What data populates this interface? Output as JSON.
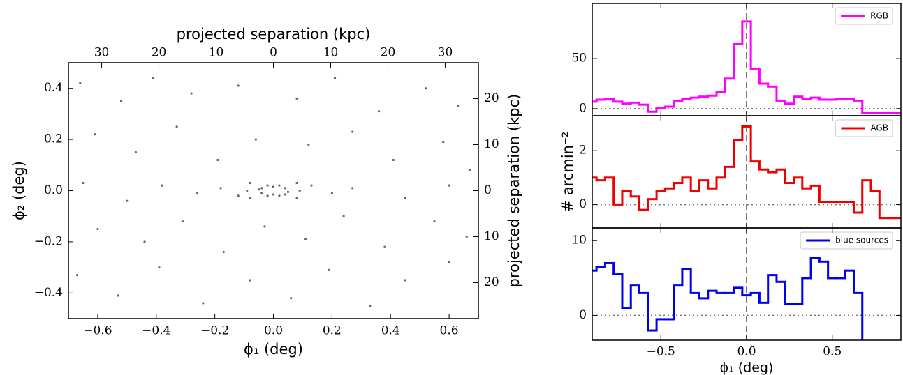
{
  "chart_data": [
    {
      "type": "scatter",
      "color": "#000000",
      "x": [
        -0.66,
        -0.52,
        -0.41,
        -0.28,
        -0.12,
        0.08,
        0.21,
        0.36,
        0.52,
        0.63,
        -0.61,
        -0.47,
        -0.33,
        -0.19,
        -0.06,
        0.12,
        0.27,
        0.41,
        0.58,
        0.67,
        -0.65,
        -0.5,
        -0.38,
        -0.26,
        -0.18,
        -0.12,
        0.13,
        0.2,
        0.27,
        0.45,
        0.6,
        -0.6,
        -0.44,
        -0.31,
        -0.17,
        -0.03,
        0.11,
        0.24,
        0.38,
        0.55,
        0.66,
        -0.67,
        -0.53,
        -0.39,
        -0.24,
        -0.08,
        0.06,
        0.19,
        0.33,
        0.45,
        0.6,
        -0.04,
        -0.02,
        0,
        0.02,
        0.04,
        0.05,
        0.04,
        0.02,
        0,
        -0.02,
        -0.04,
        -0.05,
        -0.08,
        0.08,
        -0.08,
        0.08,
        -0.09,
        0.09
      ],
      "y": [
        0.42,
        0.35,
        0.44,
        0.38,
        0.41,
        0.36,
        0.44,
        0.31,
        0.4,
        0.33,
        0.22,
        0.15,
        0.25,
        0.12,
        0.2,
        0.18,
        0.23,
        0.12,
        0.19,
        0.08,
        0.03,
        -0.04,
        0.02,
        -0.01,
        0.01,
        -0.02,
        0.02,
        -0.01,
        0.01,
        -0.03,
        0.02,
        -0.15,
        -0.2,
        -0.12,
        -0.24,
        -0.14,
        -0.19,
        -0.1,
        -0.22,
        -0.12,
        -0.18,
        -0.33,
        -0.41,
        -0.3,
        -0.44,
        -0.35,
        -0.42,
        -0.31,
        -0.45,
        -0.35,
        -0.28,
        0.01,
        0.02,
        0.015,
        0.02,
        0.01,
        -0.005,
        -0.015,
        -0.02,
        -0.015,
        -0.02,
        -0.01,
        0.005,
        0.03,
        0.03,
        -0.03,
        -0.03,
        0,
        0
      ],
      "xlim": [
        -0.7,
        0.7
      ],
      "ylim": [
        -0.5,
        0.5
      ],
      "xticks": [
        {
          "value": -0.6,
          "label": "−0.6"
        },
        {
          "value": -0.4,
          "label": "−0.4"
        },
        {
          "value": -0.2,
          "label": "−0.2"
        },
        {
          "value": 0,
          "label": "0.0"
        },
        {
          "value": 0.2,
          "label": "0.2"
        },
        {
          "value": 0.4,
          "label": "0.4"
        },
        {
          "value": 0.6,
          "label": "0.6"
        }
      ],
      "yticks": [
        {
          "value": -0.4,
          "label": "−0.4"
        },
        {
          "value": -0.2,
          "label": "−0.2"
        },
        {
          "value": 0,
          "label": "0.0"
        },
        {
          "value": 0.2,
          "label": "0.2"
        },
        {
          "value": 0.4,
          "label": "0.4"
        }
      ],
      "x2lim": [
        -35.8,
        35.8
      ],
      "x2ticks": [
        {
          "value": -30,
          "label": "30"
        },
        {
          "value": -20,
          "label": "20"
        },
        {
          "value": -10,
          "label": "10"
        },
        0,
        10,
        20,
        30
      ],
      "y2lim": [
        -27.8,
        27.8
      ],
      "y2ticks": [
        {
          "value": -20,
          "label": "20"
        },
        {
          "value": -10,
          "label": "10"
        },
        0,
        10,
        20
      ],
      "xlabel": "ϕ₁ (deg)",
      "ylabel": "ϕ₂ (deg)",
      "x2label": "projected separation (kpc)",
      "y2label": "projected separation (kpc)"
    },
    {
      "type": "histogram",
      "bins": [
        -0.925,
        -0.875,
        -0.825,
        -0.775,
        -0.725,
        -0.675,
        -0.625,
        -0.575,
        -0.525,
        -0.475,
        -0.425,
        -0.375,
        -0.325,
        -0.275,
        -0.225,
        -0.175,
        -0.125,
        -0.075,
        -0.025,
        0.025,
        0.075,
        0.125,
        0.175,
        0.225,
        0.275,
        0.325,
        0.375,
        0.425,
        0.475,
        0.525,
        0.575,
        0.625,
        0.675,
        0.725,
        0.775,
        0.825,
        0.875,
        0.925
      ],
      "series": [
        {
          "name": "RGB",
          "color": "#ff00ff",
          "values": [
            7,
            9,
            10,
            7,
            5,
            6,
            4,
            -3,
            1,
            2,
            8,
            10,
            11,
            12,
            13,
            17,
            30,
            65,
            87,
            40,
            25,
            22,
            8,
            5,
            12,
            10,
            11,
            9,
            9,
            10,
            10,
            8,
            -4,
            -4,
            -4,
            -4,
            -4
          ]
        }
      ],
      "xlim": [
        -0.9,
        0.9
      ],
      "ylim": [
        -7,
        105
      ],
      "xticks": [
        -0.5,
        0,
        0.5
      ],
      "yticks": [
        0,
        50
      ],
      "vline": 0,
      "hline": 0
    },
    {
      "type": "histogram",
      "bins": [
        -0.925,
        -0.875,
        -0.825,
        -0.775,
        -0.725,
        -0.675,
        -0.625,
        -0.575,
        -0.525,
        -0.475,
        -0.425,
        -0.375,
        -0.325,
        -0.275,
        -0.225,
        -0.175,
        -0.125,
        -0.075,
        -0.025,
        0.025,
        0.075,
        0.125,
        0.175,
        0.225,
        0.275,
        0.325,
        0.375,
        0.425,
        0.475,
        0.525,
        0.575,
        0.625,
        0.675,
        0.725,
        0.775,
        0.825,
        0.875,
        0.925
      ],
      "series": [
        {
          "name": "AGB",
          "color": "#ee0000",
          "values": [
            1.0,
            0.9,
            1.0,
            0.0,
            0.5,
            0.3,
            -0.2,
            0.2,
            0.5,
            0.6,
            0.8,
            1.0,
            0.5,
            0.9,
            0.6,
            1.0,
            1.4,
            2.4,
            2.9,
            1.6,
            1.3,
            1.2,
            1.3,
            0.8,
            1.0,
            0.6,
            0.7,
            0.1,
            0.1,
            0.1,
            0.1,
            -0.3,
            0.9,
            0.5,
            -0.5,
            -0.5,
            -0.5
          ]
        }
      ],
      "xlim": [
        -0.9,
        0.9
      ],
      "ylim": [
        -0.87,
        3.3
      ],
      "xticks": [
        -0.5,
        0,
        0.5
      ],
      "yticks": [
        0,
        2
      ],
      "vline": 0,
      "hline": 0,
      "ylabel": "# arcmin⁻²"
    },
    {
      "type": "histogram",
      "bins": [
        -0.925,
        -0.875,
        -0.825,
        -0.775,
        -0.725,
        -0.675,
        -0.625,
        -0.575,
        -0.525,
        -0.475,
        -0.425,
        -0.375,
        -0.325,
        -0.275,
        -0.225,
        -0.175,
        -0.125,
        -0.075,
        -0.025,
        0.025,
        0.075,
        0.125,
        0.175,
        0.225,
        0.275,
        0.325,
        0.375,
        0.425,
        0.475,
        0.525,
        0.575,
        0.625,
        0.675,
        0.725,
        0.775,
        0.825,
        0.875,
        0.925
      ],
      "series": [
        {
          "name": "blue sources",
          "color": "#0000ee",
          "values": [
            6,
            6.5,
            7,
            5.5,
            1,
            4,
            3,
            -2,
            -0.5,
            -0.5,
            4,
            6.2,
            3,
            2.3,
            3.3,
            3,
            3,
            3.7,
            2.7,
            3,
            1.7,
            5.4,
            4.5,
            1.5,
            1.5,
            5,
            7.7,
            7.2,
            5,
            5,
            6,
            3,
            -4,
            -4,
            -4,
            -4,
            -4
          ]
        }
      ],
      "xlim": [
        -0.9,
        0.9
      ],
      "ylim": [
        -3.3,
        11.7
      ],
      "xticks": [
        {
          "value": -0.5,
          "label": "−0.5"
        },
        {
          "value": 0,
          "label": "0.0"
        },
        {
          "value": 0.5,
          "label": "0.5"
        }
      ],
      "yticks": [
        0,
        10
      ],
      "vline": 0,
      "hline": 0,
      "xlabel": "ϕ₁ (deg)"
    }
  ]
}
